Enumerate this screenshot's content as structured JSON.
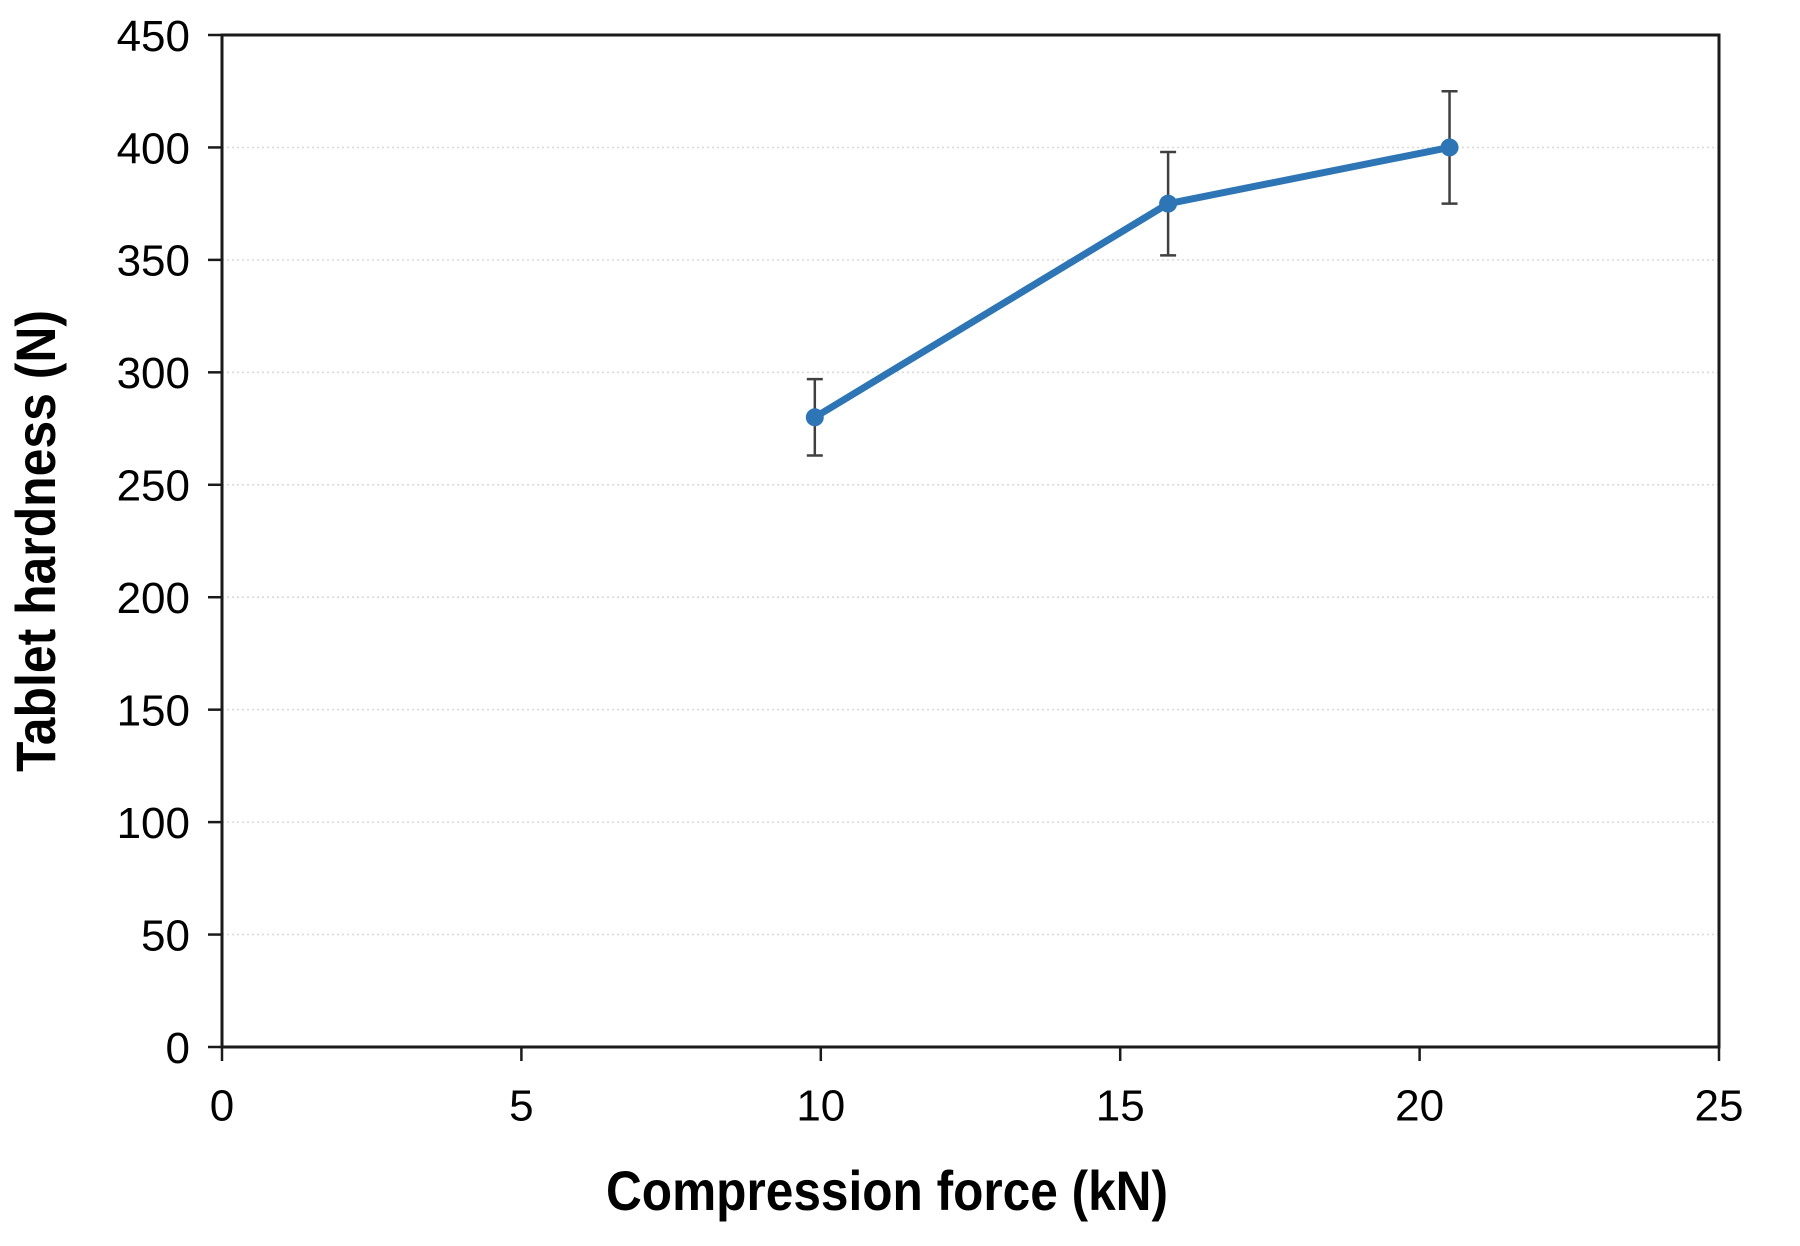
{
  "figure": {
    "background": "#ffffff"
  },
  "chart_data": {
    "type": "line",
    "title": "",
    "xlabel": "Compression force (kN)",
    "ylabel": "Tablet hardness (N)",
    "series": [
      {
        "name": "Tablet hardness",
        "x": [
          9.9,
          15.8,
          20.5
        ],
        "y": [
          280,
          375,
          400
        ],
        "yerr": [
          17,
          23,
          25
        ],
        "color": "#2E75B6",
        "marker": "circle",
        "line_width": 7,
        "marker_radius": 9
      }
    ],
    "xlim": [
      0,
      25
    ],
    "ylim": [
      0,
      450
    ],
    "xticks": [
      "0",
      "5",
      "10",
      "15",
      "20",
      "25"
    ],
    "xtick_values": [
      0,
      5,
      10,
      15,
      20,
      25
    ],
    "yticks": [
      "0",
      "50",
      "100",
      "150",
      "200",
      "250",
      "300",
      "350",
      "400",
      "450"
    ],
    "ytick_values": [
      0,
      50,
      100,
      150,
      200,
      250,
      300,
      350,
      400,
      450
    ],
    "grid": "horizontal-major",
    "grid_color": "#D9D9D9",
    "axis_color": "#1a1a1a",
    "error_bar_color": "#404040",
    "error_bar_cap_width": 16,
    "legend": "none",
    "plot_border": "full-rectangle"
  }
}
